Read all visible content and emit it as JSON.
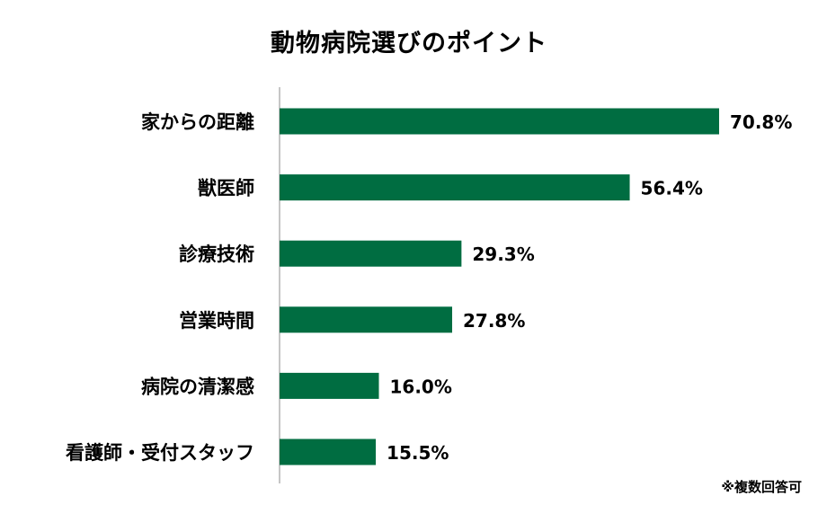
{
  "chart_data": {
    "type": "bar",
    "orientation": "horizontal",
    "title": "動物病院選びのポイント",
    "categories": [
      "家からの距離",
      "獣医師",
      "診療技術",
      "営業時間",
      "病院の清潔感",
      "看護師・受付スタッフ"
    ],
    "values": [
      70.8,
      56.4,
      29.3,
      27.8,
      16.0,
      15.5
    ],
    "value_labels": [
      "70.8%",
      "56.4%",
      "29.3%",
      "27.8%",
      "16.0%",
      "15.5%"
    ],
    "unit": "%",
    "xlim": [
      0,
      80
    ],
    "grid": false,
    "legend": "none",
    "bar_color": "#006d41",
    "note": "※複数回答可"
  }
}
